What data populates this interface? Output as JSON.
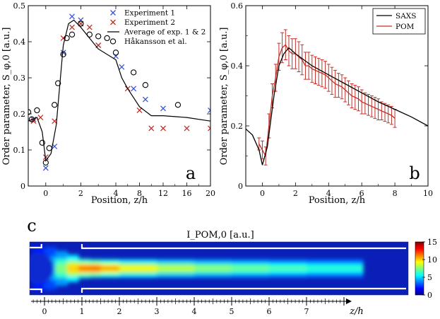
{
  "chart_data": [
    {
      "id": "a",
      "type": "scatter",
      "panel_label": "a",
      "xlabel": "Position, z/h",
      "ylabel": "Order parameter, S_φ,0 [a.u.]",
      "xlim": [
        -1,
        20
      ],
      "ylim": [
        0,
        0.5
      ],
      "xscale": "piecewise",
      "xticks": [
        0,
        2,
        4,
        8,
        12,
        16,
        20
      ],
      "yticks": [
        0,
        0.1,
        0.2,
        0.3,
        0.4,
        0.5
      ],
      "legend_position": "top-right",
      "series": [
        {
          "name": "Experiment 1",
          "marker": "x",
          "color": "#3a55d6",
          "points": [
            [
              -0.7,
              0.185
            ],
            [
              0,
              0.05
            ],
            [
              0.5,
              0.11
            ],
            [
              1,
              0.37
            ],
            [
              1.5,
              0.47
            ],
            [
              2,
              0.46
            ],
            [
              3,
              0.39
            ],
            [
              4,
              0.36
            ],
            [
              5,
              0.33
            ],
            [
              7,
              0.27
            ],
            [
              9,
              0.24
            ],
            [
              12,
              0.215
            ],
            [
              20,
              0.21
            ]
          ]
        },
        {
          "name": "Experiment 2",
          "marker": "x",
          "color": "#c03028",
          "points": [
            [
              -0.7,
              0.18
            ],
            [
              -0.3,
              0.19
            ],
            [
              0,
              0.08
            ],
            [
              0.5,
              0.18
            ],
            [
              1,
              0.41
            ],
            [
              1.5,
              0.44
            ],
            [
              2,
              0.45
            ],
            [
              2.5,
              0.44
            ],
            [
              3,
              0.39
            ],
            [
              6,
              0.27
            ],
            [
              8,
              0.21
            ],
            [
              10,
              0.16
            ],
            [
              12,
              0.16
            ],
            [
              16,
              0.16
            ],
            [
              20,
              0.16
            ]
          ]
        },
        {
          "name": "Average of exp. 1 & 2",
          "marker": "line",
          "color": "#000000",
          "points": [
            [
              -1,
              0.18
            ],
            [
              -0.5,
              0.19
            ],
            [
              -0.2,
              0.15
            ],
            [
              0,
              0.07
            ],
            [
              0.3,
              0.09
            ],
            [
              0.6,
              0.17
            ],
            [
              1,
              0.39
            ],
            [
              1.3,
              0.45
            ],
            [
              1.6,
              0.46
            ],
            [
              2,
              0.44
            ],
            [
              3,
              0.38
            ],
            [
              4,
              0.35
            ],
            [
              5,
              0.3
            ],
            [
              6,
              0.27
            ],
            [
              8,
              0.22
            ],
            [
              10,
              0.195
            ],
            [
              12,
              0.195
            ],
            [
              16,
              0.19
            ],
            [
              20,
              0.18
            ]
          ]
        },
        {
          "name": "Håkansson et al.",
          "marker": "circle",
          "color": "#000000",
          "points": [
            [
              -1,
              0.205
            ],
            [
              -0.5,
              0.21
            ],
            [
              -0.2,
              0.12
            ],
            [
              0,
              0.065
            ],
            [
              0.2,
              0.105
            ],
            [
              0.5,
              0.225
            ],
            [
              0.7,
              0.285
            ],
            [
              1,
              0.365
            ],
            [
              1.2,
              0.41
            ],
            [
              1.5,
              0.42
            ],
            [
              2,
              0.45
            ],
            [
              2.5,
              0.42
            ],
            [
              3,
              0.415
            ],
            [
              3.5,
              0.41
            ],
            [
              4,
              0.37
            ],
            [
              7,
              0.315
            ],
            [
              9,
              0.28
            ],
            [
              14.5,
              0.225
            ],
            [
              -0.8,
              0.185
            ]
          ]
        }
      ]
    },
    {
      "id": "b",
      "type": "line",
      "panel_label": "b",
      "xlabel": "Position, z/h",
      "ylabel": "Order parameter, S_φ,0 [a.u.]",
      "xlim": [
        -1,
        10
      ],
      "ylim": [
        0,
        0.6
      ],
      "xticks": [
        0,
        2,
        4,
        6,
        8,
        10
      ],
      "yticks": [
        0,
        0.2,
        0.4,
        0.6
      ],
      "legend_position": "top-right",
      "series": [
        {
          "name": "SAXS",
          "color": "#000000",
          "points": [
            [
              -1,
              0.19
            ],
            [
              -0.6,
              0.17
            ],
            [
              -0.2,
              0.12
            ],
            [
              0,
              0.07
            ],
            [
              0.3,
              0.13
            ],
            [
              0.7,
              0.3
            ],
            [
              1,
              0.4
            ],
            [
              1.3,
              0.44
            ],
            [
              1.6,
              0.46
            ],
            [
              2,
              0.44
            ],
            [
              2.5,
              0.42
            ],
            [
              3,
              0.4
            ],
            [
              4,
              0.37
            ],
            [
              5,
              0.34
            ],
            [
              6,
              0.31
            ],
            [
              7,
              0.28
            ],
            [
              8,
              0.255
            ],
            [
              9,
              0.23
            ],
            [
              10,
              0.2
            ]
          ]
        },
        {
          "name": "POM",
          "color": "#c03028",
          "points": [
            [
              -0.2,
              0.14
            ],
            [
              0,
              0.12
            ],
            [
              0.2,
              0.1
            ],
            [
              0.4,
              0.2
            ],
            [
              0.6,
              0.3
            ],
            [
              0.8,
              0.36
            ],
            [
              1,
              0.43
            ],
            [
              1.2,
              0.46
            ],
            [
              1.4,
              0.47
            ],
            [
              1.6,
              0.45
            ],
            [
              1.8,
              0.44
            ],
            [
              2,
              0.44
            ],
            [
              2.2,
              0.43
            ],
            [
              2.4,
              0.42
            ],
            [
              2.6,
              0.4
            ],
            [
              2.8,
              0.4
            ],
            [
              3,
              0.39
            ],
            [
              3.2,
              0.385
            ],
            [
              3.4,
              0.38
            ],
            [
              3.6,
              0.375
            ],
            [
              3.8,
              0.37
            ],
            [
              4,
              0.36
            ],
            [
              4.2,
              0.35
            ],
            [
              4.4,
              0.34
            ],
            [
              4.6,
              0.335
            ],
            [
              4.8,
              0.33
            ],
            [
              5,
              0.32
            ],
            [
              5.2,
              0.31
            ],
            [
              5.4,
              0.3
            ],
            [
              5.6,
              0.295
            ],
            [
              5.8,
              0.29
            ],
            [
              6,
              0.28
            ],
            [
              6.2,
              0.275
            ],
            [
              6.4,
              0.27
            ],
            [
              6.6,
              0.265
            ],
            [
              6.8,
              0.26
            ],
            [
              7,
              0.255
            ],
            [
              7.2,
              0.25
            ],
            [
              7.4,
              0.245
            ],
            [
              7.6,
              0.24
            ],
            [
              7.8,
              0.235
            ],
            [
              8,
              0.225
            ]
          ],
          "errors": [
            0.02,
            0.03,
            0.03,
            0.04,
            0.04,
            0.045,
            0.045,
            0.05,
            0.05,
            0.05,
            0.05,
            0.05,
            0.05,
            0.05,
            0.045,
            0.045,
            0.045,
            0.045,
            0.045,
            0.045,
            0.045,
            0.045,
            0.045,
            0.045,
            0.04,
            0.04,
            0.04,
            0.04,
            0.04,
            0.04,
            0.04,
            0.04,
            0.035,
            0.035,
            0.035,
            0.035,
            0.035,
            0.03,
            0.03,
            0.03,
            0.03,
            0.03
          ]
        }
      ]
    },
    {
      "id": "c",
      "type": "heatmap",
      "panel_label": "c",
      "title": "I_POM,0 [a.u.]",
      "colorbar_ticks": [
        0,
        5,
        10,
        15
      ],
      "colorbar_range": [
        0,
        15
      ],
      "colormap": "jet",
      "xaxis_label": "z/h",
      "xticks": [
        0,
        1,
        2,
        3,
        4,
        5,
        6,
        7
      ],
      "field_profile": {
        "z": [
          -0.3,
          0,
          0.3,
          0.6,
          0.9,
          1.2,
          1.5,
          2,
          3,
          4,
          5,
          6,
          7,
          8.5
        ],
        "core_intensity": [
          4,
          4.5,
          6,
          9,
          11,
          12,
          11.5,
          10,
          9,
          8,
          7.5,
          7,
          6.5,
          6
        ]
      }
    }
  ]
}
